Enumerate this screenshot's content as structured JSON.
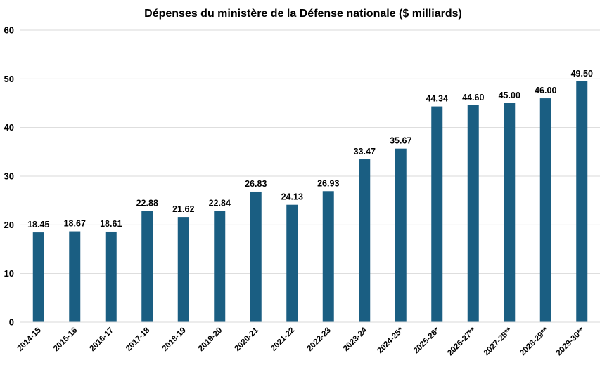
{
  "chart_data": {
    "type": "bar",
    "title": "Dépenses du ministère de la Défense nationale ($ milliards)",
    "xlabel": "",
    "ylabel": "",
    "ylim": [
      0,
      60
    ],
    "yticks": [
      0,
      10,
      20,
      30,
      40,
      50,
      60
    ],
    "grid": true,
    "legend": "none",
    "bar_color": "#1a5e82",
    "categories": [
      "2014-15",
      "2015-16",
      "2016-17",
      "2017-18",
      "2018-19",
      "2019-20",
      "2020-21",
      "2021-22",
      "2022-23",
      "2023-24",
      "2024-25*",
      "2025-26*",
      "2026-27**",
      "2027-28**",
      "2028-29**",
      "2029-30**"
    ],
    "values": [
      18.45,
      18.67,
      18.61,
      22.88,
      21.62,
      22.84,
      26.83,
      24.13,
      26.93,
      33.47,
      35.67,
      44.34,
      44.6,
      45.0,
      46.0,
      49.5
    ],
    "value_labels": [
      "18.45",
      "18.67",
      "18.61",
      "22.88",
      "21.62",
      "22.84",
      "26.83",
      "24.13",
      "26.93",
      "33.47",
      "35.67",
      "44.34",
      "44.60",
      "45.00",
      "46.00",
      "49.50"
    ]
  }
}
